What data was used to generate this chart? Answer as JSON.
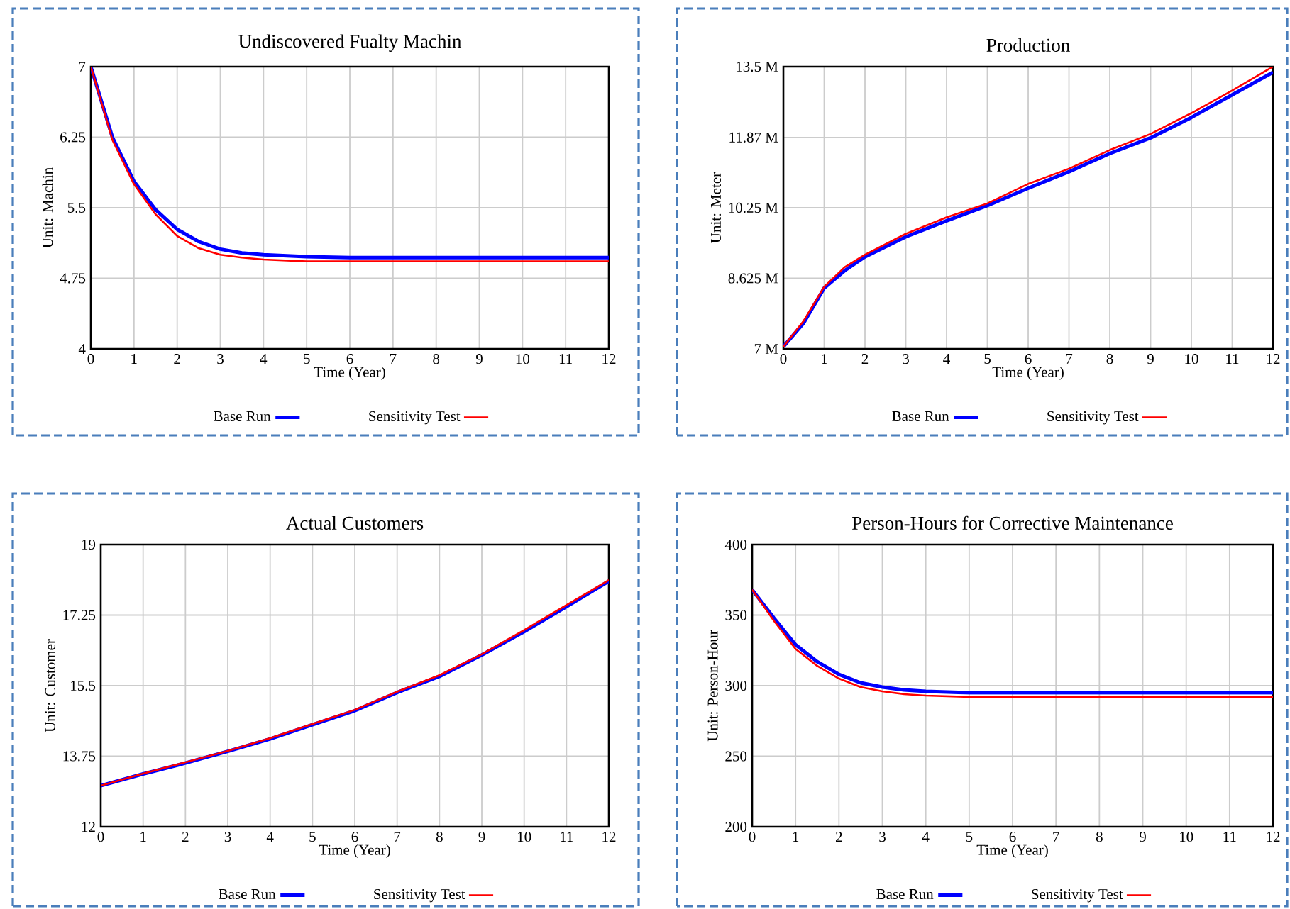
{
  "chart_data": [
    {
      "type": "line",
      "title": "Undiscovered Fualty Machin",
      "xlabel": "Time (Year)",
      "ylabel": "Unit: Machin",
      "xlim": [
        0,
        12
      ],
      "ylim": [
        4,
        7
      ],
      "xticks": [
        0,
        1,
        2,
        3,
        4,
        5,
        6,
        7,
        8,
        9,
        10,
        11,
        12
      ],
      "yticks": [
        4,
        4.75,
        5.5,
        6.25,
        7
      ],
      "grid": true,
      "legend": "bottom",
      "series": [
        {
          "name": "Base Run",
          "color": "#0000ff",
          "x": [
            0,
            0.5,
            1,
            1.5,
            2,
            2.5,
            3,
            3.5,
            4,
            5,
            6,
            8,
            10,
            12
          ],
          "values": [
            7,
            6.25,
            5.78,
            5.48,
            5.27,
            5.14,
            5.06,
            5.02,
            5.0,
            4.98,
            4.97,
            4.97,
            4.97,
            4.97
          ]
        },
        {
          "name": "Sensitivity Test",
          "color": "#ff0000",
          "x": [
            0,
            0.5,
            1,
            1.5,
            2,
            2.5,
            3,
            3.5,
            4,
            5,
            6,
            8,
            10,
            12
          ],
          "values": [
            7,
            6.22,
            5.75,
            5.43,
            5.2,
            5.07,
            5.0,
            4.97,
            4.95,
            4.93,
            4.93,
            4.93,
            4.93,
            4.93
          ]
        }
      ]
    },
    {
      "type": "line",
      "title": "Production",
      "xlabel": "Time (Year)",
      "ylabel": "Unit: Meter",
      "xlim": [
        0,
        12
      ],
      "ylim": [
        7,
        13.5
      ],
      "xticks": [
        0,
        1,
        2,
        3,
        4,
        5,
        6,
        7,
        8,
        9,
        10,
        11,
        12
      ],
      "yticks": [
        {
          "value": 7,
          "label": "7 M"
        },
        {
          "value": 8.625,
          "label": "8.625 M"
        },
        {
          "value": 10.25,
          "label": "10.25 M"
        },
        {
          "value": 11.87,
          "label": "11.87 M"
        },
        {
          "value": 13.5,
          "label": "13.5 M"
        }
      ],
      "grid": true,
      "legend": "bottom",
      "series": [
        {
          "name": "Base Run",
          "color": "#0000ff",
          "x": [
            0,
            0.5,
            1,
            1.5,
            2,
            3,
            4,
            5,
            6,
            7,
            8,
            9,
            10,
            11,
            12
          ],
          "values": [
            7.05,
            7.6,
            8.4,
            8.8,
            9.12,
            9.58,
            9.95,
            10.3,
            10.7,
            11.08,
            11.5,
            11.86,
            12.33,
            12.85,
            13.37
          ]
        },
        {
          "name": "Sensitivity Test",
          "color": "#ff0000",
          "x": [
            0,
            0.5,
            1,
            1.5,
            2,
            3,
            4,
            5,
            6,
            7,
            8,
            9,
            10,
            11,
            12
          ],
          "values": [
            7.05,
            7.65,
            8.43,
            8.88,
            9.17,
            9.65,
            10.03,
            10.35,
            10.8,
            11.15,
            11.58,
            11.95,
            12.43,
            12.95,
            13.5
          ]
        }
      ]
    },
    {
      "type": "line",
      "title": "Actual Customers",
      "xlabel": "Time (Year)",
      "ylabel": "Unit: Customer",
      "xlim": [
        0,
        12
      ],
      "ylim": [
        12,
        19
      ],
      "xticks": [
        0,
        1,
        2,
        3,
        4,
        5,
        6,
        7,
        8,
        9,
        10,
        11,
        12
      ],
      "yticks": [
        12,
        13.75,
        15.5,
        17.25,
        19
      ],
      "grid": true,
      "legend": "bottom",
      "series": [
        {
          "name": "Base Run",
          "color": "#0000ff",
          "x": [
            0,
            1,
            2,
            3,
            4,
            5,
            6,
            7,
            8,
            9,
            10,
            11,
            12
          ],
          "values": [
            13.02,
            13.31,
            13.58,
            13.87,
            14.18,
            14.53,
            14.88,
            15.33,
            15.73,
            16.26,
            16.84,
            17.46,
            18.09
          ]
        },
        {
          "name": "Sensitivity Test",
          "color": "#ff0000",
          "x": [
            0,
            1,
            2,
            3,
            4,
            5,
            6,
            7,
            8,
            9,
            10,
            11,
            12
          ],
          "values": [
            13.02,
            13.32,
            13.6,
            13.88,
            14.2,
            14.55,
            14.9,
            15.35,
            15.76,
            16.28,
            16.88,
            17.5,
            18.12
          ]
        }
      ]
    },
    {
      "type": "line",
      "title": "Person-Hours for Corrective Maintenance",
      "xlabel": "Time (Year)",
      "ylabel": "Unit: Person-Hour",
      "xlim": [
        0,
        12
      ],
      "ylim": [
        200,
        400
      ],
      "xticks": [
        0,
        1,
        2,
        3,
        4,
        5,
        6,
        7,
        8,
        9,
        10,
        11,
        12
      ],
      "yticks": [
        200,
        250,
        300,
        350,
        400
      ],
      "grid": true,
      "legend": "bottom",
      "series": [
        {
          "name": "Base Run",
          "color": "#0000ff",
          "x": [
            0,
            0.5,
            1,
            1.5,
            2,
            2.5,
            3,
            3.5,
            4,
            5,
            6,
            8,
            10,
            12
          ],
          "values": [
            368,
            348,
            329,
            317,
            308,
            302,
            299,
            297,
            296,
            295,
            295,
            295,
            295,
            295
          ]
        },
        {
          "name": "Sensitivity Test",
          "color": "#ff0000",
          "x": [
            0,
            0.5,
            1,
            1.5,
            2,
            2.5,
            3,
            3.5,
            4,
            5,
            6,
            8,
            10,
            12
          ],
          "values": [
            368,
            346,
            326,
            314,
            305,
            299,
            296,
            294,
            293,
            292,
            292,
            292,
            292,
            292
          ]
        }
      ]
    }
  ]
}
